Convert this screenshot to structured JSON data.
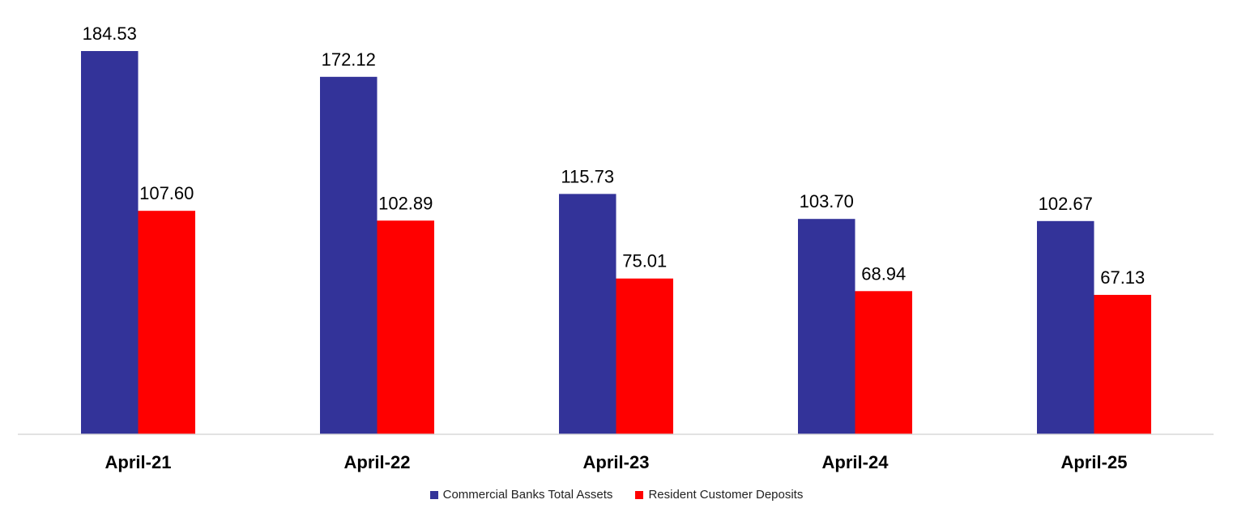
{
  "chart_data": {
    "type": "bar",
    "categories": [
      "April-21",
      "April-22",
      "April-23",
      "April-24",
      "April-25"
    ],
    "series": [
      {
        "name": "Commercial Banks Total Assets",
        "color": "#333399",
        "values": [
          184.53,
          172.12,
          115.73,
          103.7,
          102.67
        ],
        "labels": [
          "184.53",
          "172.12",
          "115.73",
          "103.70",
          "102.67"
        ]
      },
      {
        "name": "Resident Customer Deposits",
        "color": "#ff0000",
        "values": [
          107.6,
          102.89,
          75.01,
          68.94,
          67.13
        ],
        "labels": [
          "107.60",
          "102.89",
          "75.01",
          "68.94",
          "67.13"
        ]
      }
    ],
    "ylim": [
      0,
      184.53
    ],
    "grid": false,
    "legend_position": "bottom"
  }
}
